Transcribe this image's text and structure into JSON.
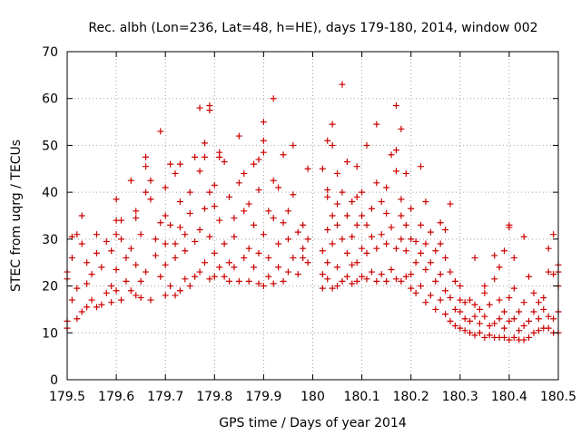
{
  "chart_data": {
    "type": "scatter",
    "title": "Rec. albh (Lon=236, Lat=48, h=HE), days 179-180, 2014, window 002",
    "xlabel": "GPS time / Days of year 2014",
    "ylabel": "STEC from uqrg / TECUs",
    "xlim": [
      179.5,
      180.5
    ],
    "ylim": [
      0,
      70
    ],
    "xticks": [
      179.5,
      179.6,
      179.7,
      179.8,
      179.9,
      180,
      180.1,
      180.2,
      180.3,
      180.4,
      180.5
    ],
    "xtick_labels": [
      "179.5",
      "179.6",
      "179.7",
      "179.8",
      "179.9",
      "180",
      "180.1",
      "180.2",
      "180.3",
      "180.4",
      "180.5"
    ],
    "yticks": [
      0,
      10,
      20,
      30,
      40,
      50,
      60,
      70
    ],
    "ytick_labels": [
      "0",
      "10",
      "20",
      "30",
      "40",
      "50",
      "60",
      "70"
    ],
    "grid": true,
    "marker": "+",
    "color": "#cc0000",
    "points": [
      [
        179.5,
        11
      ],
      [
        179.5,
        12.5
      ],
      [
        179.5,
        21.5
      ],
      [
        179.5,
        23
      ],
      [
        179.51,
        17
      ],
      [
        179.51,
        26
      ],
      [
        179.51,
        30.5
      ],
      [
        179.52,
        13
      ],
      [
        179.52,
        19.5
      ],
      [
        179.52,
        31
      ],
      [
        179.53,
        14.5
      ],
      [
        179.53,
        29
      ],
      [
        179.53,
        35
      ],
      [
        179.54,
        15.5
      ],
      [
        179.54,
        20.5
      ],
      [
        179.54,
        25
      ],
      [
        179.55,
        17
      ],
      [
        179.55,
        22.5
      ],
      [
        179.56,
        15.5
      ],
      [
        179.56,
        27
      ],
      [
        179.56,
        31
      ],
      [
        179.57,
        16
      ],
      [
        179.57,
        24
      ],
      [
        179.58,
        18.5
      ],
      [
        179.58,
        29.5
      ],
      [
        179.59,
        16.5
      ],
      [
        179.59,
        20
      ],
      [
        179.59,
        27.5
      ],
      [
        179.6,
        19
      ],
      [
        179.6,
        23.5
      ],
      [
        179.6,
        31
      ],
      [
        179.6,
        34
      ],
      [
        179.6,
        38.5
      ],
      [
        179.61,
        17
      ],
      [
        179.61,
        30
      ],
      [
        179.61,
        34
      ],
      [
        179.62,
        21
      ],
      [
        179.62,
        26
      ],
      [
        179.63,
        19
      ],
      [
        179.63,
        28
      ],
      [
        179.63,
        42.5
      ],
      [
        179.64,
        18
      ],
      [
        179.64,
        24.5
      ],
      [
        179.64,
        34.5
      ],
      [
        179.64,
        36
      ],
      [
        179.65,
        17.5
      ],
      [
        179.65,
        21
      ],
      [
        179.65,
        31
      ],
      [
        179.66,
        40
      ],
      [
        179.66,
        45.5
      ],
      [
        179.66,
        47.5
      ],
      [
        179.66,
        23
      ],
      [
        179.67,
        17
      ],
      [
        179.67,
        38.5
      ],
      [
        179.67,
        42.5
      ],
      [
        179.68,
        26.5
      ],
      [
        179.68,
        30
      ],
      [
        179.69,
        22
      ],
      [
        179.69,
        33.5
      ],
      [
        179.69,
        53
      ],
      [
        179.7,
        18
      ],
      [
        179.7,
        24.5
      ],
      [
        179.7,
        29
      ],
      [
        179.7,
        35
      ],
      [
        179.7,
        41
      ],
      [
        179.71,
        20
      ],
      [
        179.71,
        33
      ],
      [
        179.71,
        46
      ],
      [
        179.72,
        18
      ],
      [
        179.72,
        26
      ],
      [
        179.72,
        29
      ],
      [
        179.72,
        44
      ],
      [
        179.73,
        19
      ],
      [
        179.73,
        32.5
      ],
      [
        179.73,
        38
      ],
      [
        179.73,
        46
      ],
      [
        179.74,
        21.5
      ],
      [
        179.74,
        27.5
      ],
      [
        179.74,
        31
      ],
      [
        179.75,
        20
      ],
      [
        179.75,
        35.5
      ],
      [
        179.75,
        40
      ],
      [
        179.76,
        22
      ],
      [
        179.76,
        29.5
      ],
      [
        179.76,
        47.5
      ],
      [
        179.77,
        23
      ],
      [
        179.77,
        32
      ],
      [
        179.77,
        44.5
      ],
      [
        179.77,
        58
      ],
      [
        179.78,
        25
      ],
      [
        179.78,
        36.5
      ],
      [
        179.78,
        47.5
      ],
      [
        179.78,
        50.5
      ],
      [
        179.79,
        21.5
      ],
      [
        179.79,
        30.5
      ],
      [
        179.79,
        40
      ],
      [
        179.79,
        57.5
      ],
      [
        179.79,
        58.5
      ],
      [
        179.8,
        22
      ],
      [
        179.8,
        27
      ],
      [
        179.8,
        37
      ],
      [
        179.8,
        41.5
      ],
      [
        179.81,
        24
      ],
      [
        179.81,
        34
      ],
      [
        179.81,
        47.5
      ],
      [
        179.81,
        48.5
      ],
      [
        179.82,
        22
      ],
      [
        179.82,
        29
      ],
      [
        179.82,
        46.5
      ],
      [
        179.83,
        21
      ],
      [
        179.83,
        25
      ],
      [
        179.83,
        39
      ],
      [
        179.84,
        24
      ],
      [
        179.84,
        30.5
      ],
      [
        179.84,
        34.5
      ],
      [
        179.85,
        21
      ],
      [
        179.85,
        42
      ],
      [
        179.85,
        52
      ],
      [
        179.86,
        26
      ],
      [
        179.86,
        36
      ],
      [
        179.86,
        44
      ],
      [
        179.87,
        21
      ],
      [
        179.87,
        28
      ],
      [
        179.87,
        37.5
      ],
      [
        179.88,
        24
      ],
      [
        179.88,
        33
      ],
      [
        179.88,
        46
      ],
      [
        179.89,
        20.5
      ],
      [
        179.89,
        27
      ],
      [
        179.89,
        40.5
      ],
      [
        179.89,
        47
      ],
      [
        179.9,
        20
      ],
      [
        179.9,
        31
      ],
      [
        179.9,
        48.5
      ],
      [
        179.9,
        51
      ],
      [
        179.9,
        55
      ],
      [
        179.91,
        22
      ],
      [
        179.91,
        26
      ],
      [
        179.91,
        36
      ],
      [
        179.92,
        20.5
      ],
      [
        179.92,
        34.5
      ],
      [
        179.92,
        42.5
      ],
      [
        179.92,
        60
      ],
      [
        179.93,
        24
      ],
      [
        179.93,
        29
      ],
      [
        179.93,
        41
      ],
      [
        179.94,
        21
      ],
      [
        179.94,
        33.5
      ],
      [
        179.94,
        48
      ],
      [
        179.95,
        23
      ],
      [
        179.95,
        30
      ],
      [
        179.95,
        36
      ],
      [
        179.96,
        26
      ],
      [
        179.96,
        39.5
      ],
      [
        179.96,
        50
      ],
      [
        179.97,
        22.5
      ],
      [
        179.97,
        31.5
      ],
      [
        179.98,
        26
      ],
      [
        179.98,
        33
      ],
      [
        179.98,
        28
      ],
      [
        179.99,
        25
      ],
      [
        179.99,
        45
      ],
      [
        179.99,
        30
      ],
      [
        180.02,
        19.5
      ],
      [
        180.02,
        22.5
      ],
      [
        180.02,
        27.5
      ],
      [
        180.02,
        45
      ],
      [
        180.03,
        21.5
      ],
      [
        180.03,
        25
      ],
      [
        180.03,
        32
      ],
      [
        180.03,
        39
      ],
      [
        180.03,
        40.5
      ],
      [
        180.03,
        51
      ],
      [
        180.04,
        19.5
      ],
      [
        180.04,
        29
      ],
      [
        180.04,
        35
      ],
      [
        180.04,
        50
      ],
      [
        180.04,
        54.5
      ],
      [
        180.05,
        20
      ],
      [
        180.05,
        24
      ],
      [
        180.05,
        33
      ],
      [
        180.05,
        37.5
      ],
      [
        180.05,
        44
      ],
      [
        180.06,
        63
      ],
      [
        180.06,
        21
      ],
      [
        180.06,
        30
      ],
      [
        180.06,
        40
      ],
      [
        180.07,
        22
      ],
      [
        180.07,
        27
      ],
      [
        180.07,
        35
      ],
      [
        180.07,
        46.5
      ],
      [
        180.08,
        20.5
      ],
      [
        180.08,
        24.5
      ],
      [
        180.08,
        30.5
      ],
      [
        180.08,
        38
      ],
      [
        180.09,
        21
      ],
      [
        180.09,
        25
      ],
      [
        180.09,
        33
      ],
      [
        180.09,
        39
      ],
      [
        180.09,
        45.5
      ],
      [
        180.1,
        22
      ],
      [
        180.1,
        28
      ],
      [
        180.1,
        35
      ],
      [
        180.1,
        40
      ],
      [
        180.11,
        21.5
      ],
      [
        180.11,
        27
      ],
      [
        180.11,
        33
      ],
      [
        180.11,
        50
      ],
      [
        180.12,
        23
      ],
      [
        180.12,
        30.5
      ],
      [
        180.12,
        36.5
      ],
      [
        180.13,
        21
      ],
      [
        180.13,
        28
      ],
      [
        180.13,
        42
      ],
      [
        180.13,
        54.5
      ],
      [
        180.14,
        22.5
      ],
      [
        180.14,
        31
      ],
      [
        180.14,
        38
      ],
      [
        180.15,
        21
      ],
      [
        180.15,
        29
      ],
      [
        180.15,
        35.5
      ],
      [
        180.15,
        41
      ],
      [
        180.16,
        23.5
      ],
      [
        180.16,
        32.5
      ],
      [
        180.16,
        48
      ],
      [
        180.17,
        21.5
      ],
      [
        180.17,
        28
      ],
      [
        180.17,
        44.5
      ],
      [
        180.17,
        58.5
      ],
      [
        180.17,
        49
      ],
      [
        180.18,
        21
      ],
      [
        180.18,
        30
      ],
      [
        180.18,
        35
      ],
      [
        180.18,
        38.5
      ],
      [
        180.18,
        53.5
      ],
      [
        180.19,
        22
      ],
      [
        180.19,
        27.5
      ],
      [
        180.19,
        33
      ],
      [
        180.19,
        44
      ],
      [
        180.2,
        19.5
      ],
      [
        180.2,
        22.5
      ],
      [
        180.2,
        30
      ],
      [
        180.2,
        36.5
      ],
      [
        180.21,
        18.5
      ],
      [
        180.21,
        25
      ],
      [
        180.21,
        29.5
      ],
      [
        180.22,
        20
      ],
      [
        180.22,
        27
      ],
      [
        180.22,
        33
      ],
      [
        180.22,
        45.5
      ],
      [
        180.23,
        16.5
      ],
      [
        180.23,
        23.5
      ],
      [
        180.23,
        29
      ],
      [
        180.23,
        38
      ],
      [
        180.24,
        18
      ],
      [
        180.24,
        25
      ],
      [
        180.24,
        31.5
      ],
      [
        180.25,
        15
      ],
      [
        180.25,
        21
      ],
      [
        180.25,
        27.5
      ],
      [
        180.26,
        17
      ],
      [
        180.26,
        22.5
      ],
      [
        180.26,
        33.5
      ],
      [
        180.26,
        29
      ],
      [
        180.27,
        14
      ],
      [
        180.27,
        19
      ],
      [
        180.27,
        26
      ],
      [
        180.27,
        32
      ],
      [
        180.28,
        12.5
      ],
      [
        180.28,
        17.5
      ],
      [
        180.28,
        23
      ],
      [
        180.28,
        37.5
      ],
      [
        180.29,
        11.5
      ],
      [
        180.29,
        15
      ],
      [
        180.29,
        21
      ],
      [
        180.3,
        11
      ],
      [
        180.3,
        14.5
      ],
      [
        180.3,
        17
      ],
      [
        180.3,
        20
      ],
      [
        180.31,
        10.5
      ],
      [
        180.31,
        13
      ],
      [
        180.31,
        16.5
      ],
      [
        180.32,
        10
      ],
      [
        180.32,
        12.5
      ],
      [
        180.32,
        17
      ],
      [
        180.33,
        9.5
      ],
      [
        180.33,
        13.5
      ],
      [
        180.33,
        16
      ],
      [
        180.33,
        26
      ],
      [
        180.34,
        10
      ],
      [
        180.34,
        12
      ],
      [
        180.34,
        15
      ],
      [
        180.35,
        9
      ],
      [
        180.35,
        13.5
      ],
      [
        180.35,
        18.5
      ],
      [
        180.35,
        20
      ],
      [
        180.36,
        9.5
      ],
      [
        180.36,
        11.5
      ],
      [
        180.36,
        16
      ],
      [
        180.37,
        9
      ],
      [
        180.37,
        12
      ],
      [
        180.37,
        21.5
      ],
      [
        180.37,
        26.5
      ],
      [
        180.38,
        9
      ],
      [
        180.38,
        13
      ],
      [
        180.38,
        17
      ],
      [
        180.38,
        24
      ],
      [
        180.39,
        9
      ],
      [
        180.39,
        11
      ],
      [
        180.39,
        14.5
      ],
      [
        180.39,
        27.5
      ],
      [
        180.4,
        8.5
      ],
      [
        180.4,
        12.5
      ],
      [
        180.4,
        17.5
      ],
      [
        180.4,
        33
      ],
      [
        180.4,
        32.5
      ],
      [
        180.41,
        9
      ],
      [
        180.41,
        13
      ],
      [
        180.41,
        19.5
      ],
      [
        180.41,
        26
      ],
      [
        180.42,
        8.5
      ],
      [
        180.42,
        10.5
      ],
      [
        180.42,
        14.5
      ],
      [
        180.43,
        8.5
      ],
      [
        180.43,
        11.5
      ],
      [
        180.43,
        16.5
      ],
      [
        180.43,
        30.5
      ],
      [
        180.44,
        9
      ],
      [
        180.44,
        12.5
      ],
      [
        180.44,
        22
      ],
      [
        180.45,
        10
      ],
      [
        180.45,
        14.5
      ],
      [
        180.45,
        18.5
      ],
      [
        180.46,
        10.5
      ],
      [
        180.46,
        13
      ],
      [
        180.46,
        16.5
      ],
      [
        180.47,
        11
      ],
      [
        180.47,
        15
      ],
      [
        180.47,
        17.5
      ],
      [
        180.48,
        11
      ],
      [
        180.48,
        13.5
      ],
      [
        180.48,
        23
      ],
      [
        180.48,
        28
      ],
      [
        180.49,
        10
      ],
      [
        180.49,
        13
      ],
      [
        180.49,
        22.5
      ],
      [
        180.49,
        31
      ],
      [
        180.5,
        10
      ],
      [
        180.5,
        14.5
      ],
      [
        180.5,
        20
      ],
      [
        180.5,
        23
      ],
      [
        180.5,
        24.5
      ]
    ]
  }
}
